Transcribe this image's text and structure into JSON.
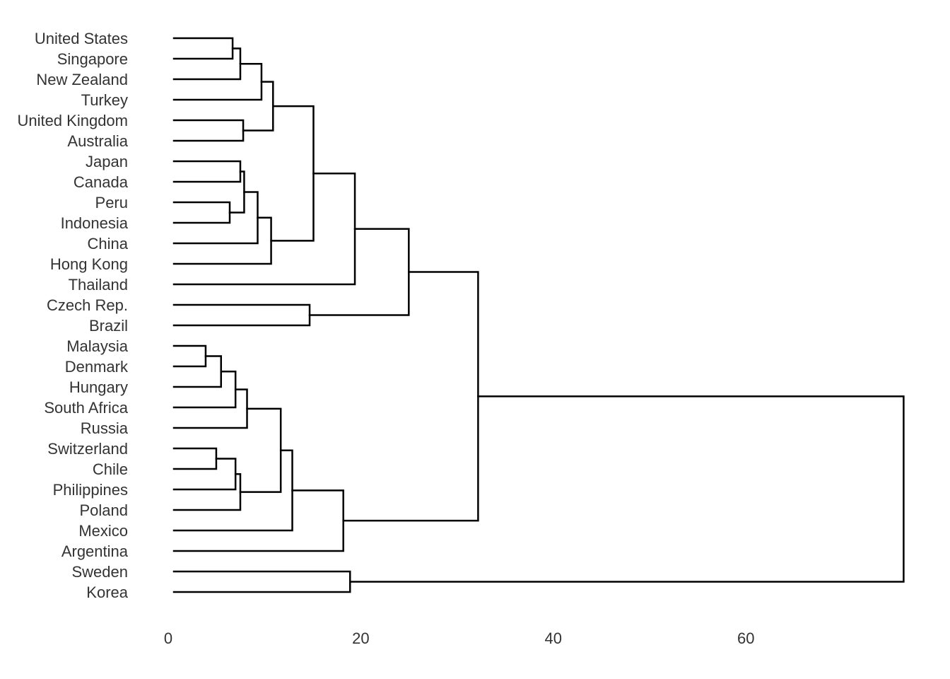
{
  "chart_data": {
    "type": "dendrogram",
    "orientation": "horizontal",
    "title": "",
    "xlabel": "",
    "ylabel": "",
    "xlim": [
      0,
      76
    ],
    "x_ticks": [
      "0",
      "20",
      "40",
      "60"
    ],
    "x_tick_values": [
      0,
      20,
      40,
      60
    ],
    "grid": false,
    "leaves": [
      "United States",
      "Singapore",
      "New Zealand",
      "Turkey",
      "United Kingdom",
      "Australia",
      "Japan",
      "Canada",
      "Peru",
      "Indonesia",
      "China",
      "Hong Kong",
      "Thailand",
      "Czech Rep.",
      "Brazil",
      "Malaysia",
      "Denmark",
      "Hungary",
      "South Africa",
      "Russia",
      "Switzerland",
      "Chile",
      "Philippines",
      "Poland",
      "Mexico",
      "Argentina",
      "Sweden",
      "Korea"
    ],
    "merges": [
      {
        "id": "m1",
        "left": "United States",
        "right": "Singapore",
        "height": 6.1
      },
      {
        "id": "m2",
        "left": "m1",
        "right": "New Zealand",
        "height": 6.9
      },
      {
        "id": "m3",
        "left": "m2",
        "right": "Turkey",
        "height": 9.1
      },
      {
        "id": "m4",
        "left": "United Kingdom",
        "right": "Australia",
        "height": 7.2
      },
      {
        "id": "m5",
        "left": "m3",
        "right": "m4",
        "height": 10.3
      },
      {
        "id": "m6",
        "left": "Japan",
        "right": "Canada",
        "height": 6.9
      },
      {
        "id": "m7",
        "left": "Peru",
        "right": "Indonesia",
        "height": 5.8
      },
      {
        "id": "m8",
        "left": "m6",
        "right": "m7",
        "height": 7.3
      },
      {
        "id": "m9",
        "left": "m8",
        "right": "China",
        "height": 8.7
      },
      {
        "id": "m10",
        "left": "m9",
        "right": "Hong Kong",
        "height": 10.1
      },
      {
        "id": "m11",
        "left": "m5",
        "right": "m10",
        "height": 14.5
      },
      {
        "id": "m12",
        "left": "m11",
        "right": "Thailand",
        "height": 18.8
      },
      {
        "id": "m13",
        "left": "Czech Rep.",
        "right": "Brazil",
        "height": 14.1
      },
      {
        "id": "m14",
        "left": "m12",
        "right": "m13",
        "height": 24.4
      },
      {
        "id": "m15",
        "left": "Malaysia",
        "right": "Denmark",
        "height": 3.3
      },
      {
        "id": "m16",
        "left": "m15",
        "right": "Hungary",
        "height": 4.9
      },
      {
        "id": "m17",
        "left": "m16",
        "right": "South Africa",
        "height": 6.4
      },
      {
        "id": "m18",
        "left": "m17",
        "right": "Russia",
        "height": 7.6
      },
      {
        "id": "m19",
        "left": "Switzerland",
        "right": "Chile",
        "height": 4.4
      },
      {
        "id": "m20",
        "left": "m19",
        "right": "Philippines",
        "height": 6.4
      },
      {
        "id": "m21",
        "left": "m20",
        "right": "Poland",
        "height": 6.9
      },
      {
        "id": "m22",
        "left": "m18",
        "right": "m21",
        "height": 11.1
      },
      {
        "id": "m23",
        "left": "m22",
        "right": "Mexico",
        "height": 12.3
      },
      {
        "id": "m24",
        "left": "m23",
        "right": "Argentina",
        "height": 17.6
      },
      {
        "id": "m25",
        "left": "m14",
        "right": "m24",
        "height": 31.6
      },
      {
        "id": "m26",
        "left": "Sweden",
        "right": "Korea",
        "height": 18.3
      },
      {
        "id": "m27",
        "left": "m25",
        "right": "m26",
        "height": 75.8
      }
    ]
  }
}
